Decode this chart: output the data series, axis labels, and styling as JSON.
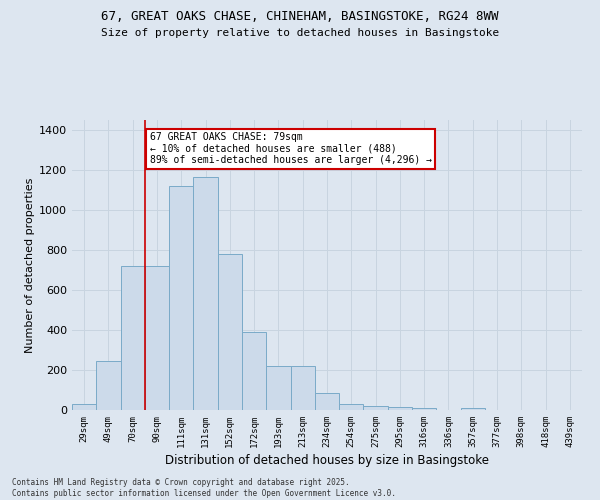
{
  "title": "67, GREAT OAKS CHASE, CHINEHAM, BASINGSTOKE, RG24 8WW",
  "subtitle": "Size of property relative to detached houses in Basingstoke",
  "xlabel": "Distribution of detached houses by size in Basingstoke",
  "ylabel": "Number of detached properties",
  "categories": [
    "29sqm",
    "49sqm",
    "70sqm",
    "90sqm",
    "111sqm",
    "131sqm",
    "152sqm",
    "172sqm",
    "193sqm",
    "213sqm",
    "234sqm",
    "254sqm",
    "275sqm",
    "295sqm",
    "316sqm",
    "336sqm",
    "357sqm",
    "377sqm",
    "398sqm",
    "418sqm",
    "439sqm"
  ],
  "values": [
    30,
    245,
    720,
    720,
    1120,
    1165,
    780,
    390,
    220,
    220,
    85,
    30,
    20,
    15,
    10,
    0,
    8,
    0,
    0,
    0,
    0
  ],
  "bar_color": "#ccdaea",
  "bar_edge_color": "#7aaac8",
  "property_line_x": 2.5,
  "annotation_line1": "67 GREAT OAKS CHASE: 79sqm",
  "annotation_line2": "← 10% of detached houses are smaller (488)",
  "annotation_line3": "89% of semi-detached houses are larger (4,296) →",
  "annotation_box_color": "#ffffff",
  "annotation_border_color": "#cc0000",
  "vline_color": "#cc0000",
  "grid_color": "#c8d4e0",
  "background_color": "#dde6f0",
  "ylim": [
    0,
    1450
  ],
  "yticks": [
    0,
    200,
    400,
    600,
    800,
    1000,
    1200,
    1400
  ],
  "footer_line1": "Contains HM Land Registry data © Crown copyright and database right 2025.",
  "footer_line2": "Contains public sector information licensed under the Open Government Licence v3.0."
}
